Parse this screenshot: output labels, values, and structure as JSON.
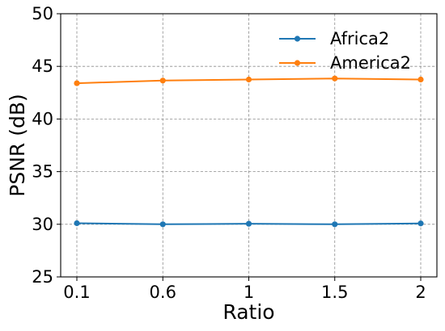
{
  "chart_data": {
    "type": "line",
    "title": "",
    "xlabel": "Ratio",
    "ylabel": "PSNR (dB)",
    "categories": [
      "0.1",
      "0.6",
      "1",
      "1.5",
      "2"
    ],
    "ylim": [
      25,
      50
    ],
    "yticks": [
      "25",
      "30",
      "35",
      "40",
      "45",
      "50"
    ],
    "grid": true,
    "legend_position": "top-right",
    "series": [
      {
        "name": "Africa2",
        "color": "#1f77b4",
        "marker": "circle",
        "values": [
          30.1,
          30.0,
          30.05,
          30.0,
          30.08
        ]
      },
      {
        "name": "America2",
        "color": "#ff7f0e",
        "marker": "circle",
        "values": [
          43.4,
          43.65,
          43.75,
          43.85,
          43.75
        ]
      }
    ]
  }
}
